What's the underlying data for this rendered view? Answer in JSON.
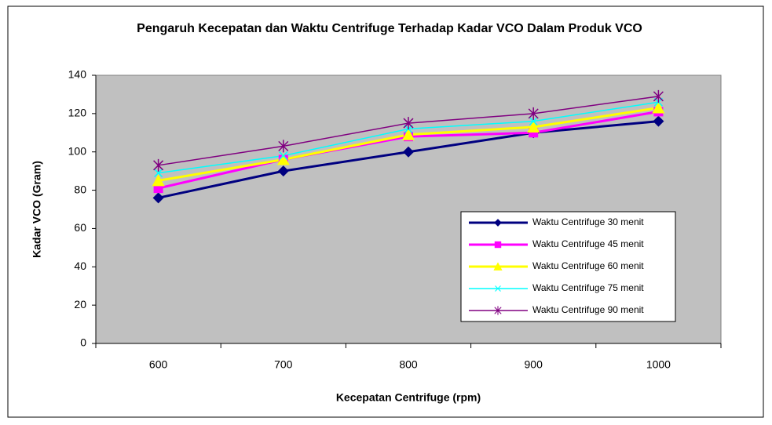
{
  "chart_data": {
    "type": "line",
    "title": "Pengaruh Kecepatan dan Waktu Centrifuge Terhadap Kadar VCO Dalam Produk VCO",
    "x_label": "Kecepatan Centrifuge (rpm)",
    "y_label": "Kadar VCO (Gram)",
    "categories": [
      "600",
      "700",
      "800",
      "900",
      "1000"
    ],
    "ylim": [
      0,
      140
    ],
    "yticks": [
      0,
      20,
      40,
      60,
      80,
      100,
      120,
      140
    ],
    "grid": false,
    "plot_background": "#c0c0c0",
    "legend_position": "lower right",
    "series": [
      {
        "name": "Waktu Centrifuge 30 menit",
        "color": "#000080",
        "marker": "diamond",
        "line_width": 3,
        "values": [
          76,
          90,
          100,
          110,
          116
        ]
      },
      {
        "name": "Waktu Centrifuge 45 menit",
        "color": "#ff00ff",
        "marker": "square",
        "line_width": 3,
        "values": [
          81,
          96,
          108,
          110,
          121
        ]
      },
      {
        "name": "Waktu Centrifuge 60 menit",
        "color": "#ffff00",
        "marker": "triangle",
        "line_width": 3,
        "values": [
          85,
          96,
          109,
          113,
          123
        ]
      },
      {
        "name": "Waktu Centrifuge 75 menit",
        "color": "#00ffff",
        "marker": "x",
        "line_width": 1.5,
        "values": [
          89,
          98,
          112,
          116,
          126
        ]
      },
      {
        "name": "Waktu Centrifuge 90 menit",
        "color": "#800080",
        "marker": "star",
        "line_width": 1.5,
        "values": [
          93,
          103,
          115,
          120,
          129
        ]
      }
    ]
  }
}
